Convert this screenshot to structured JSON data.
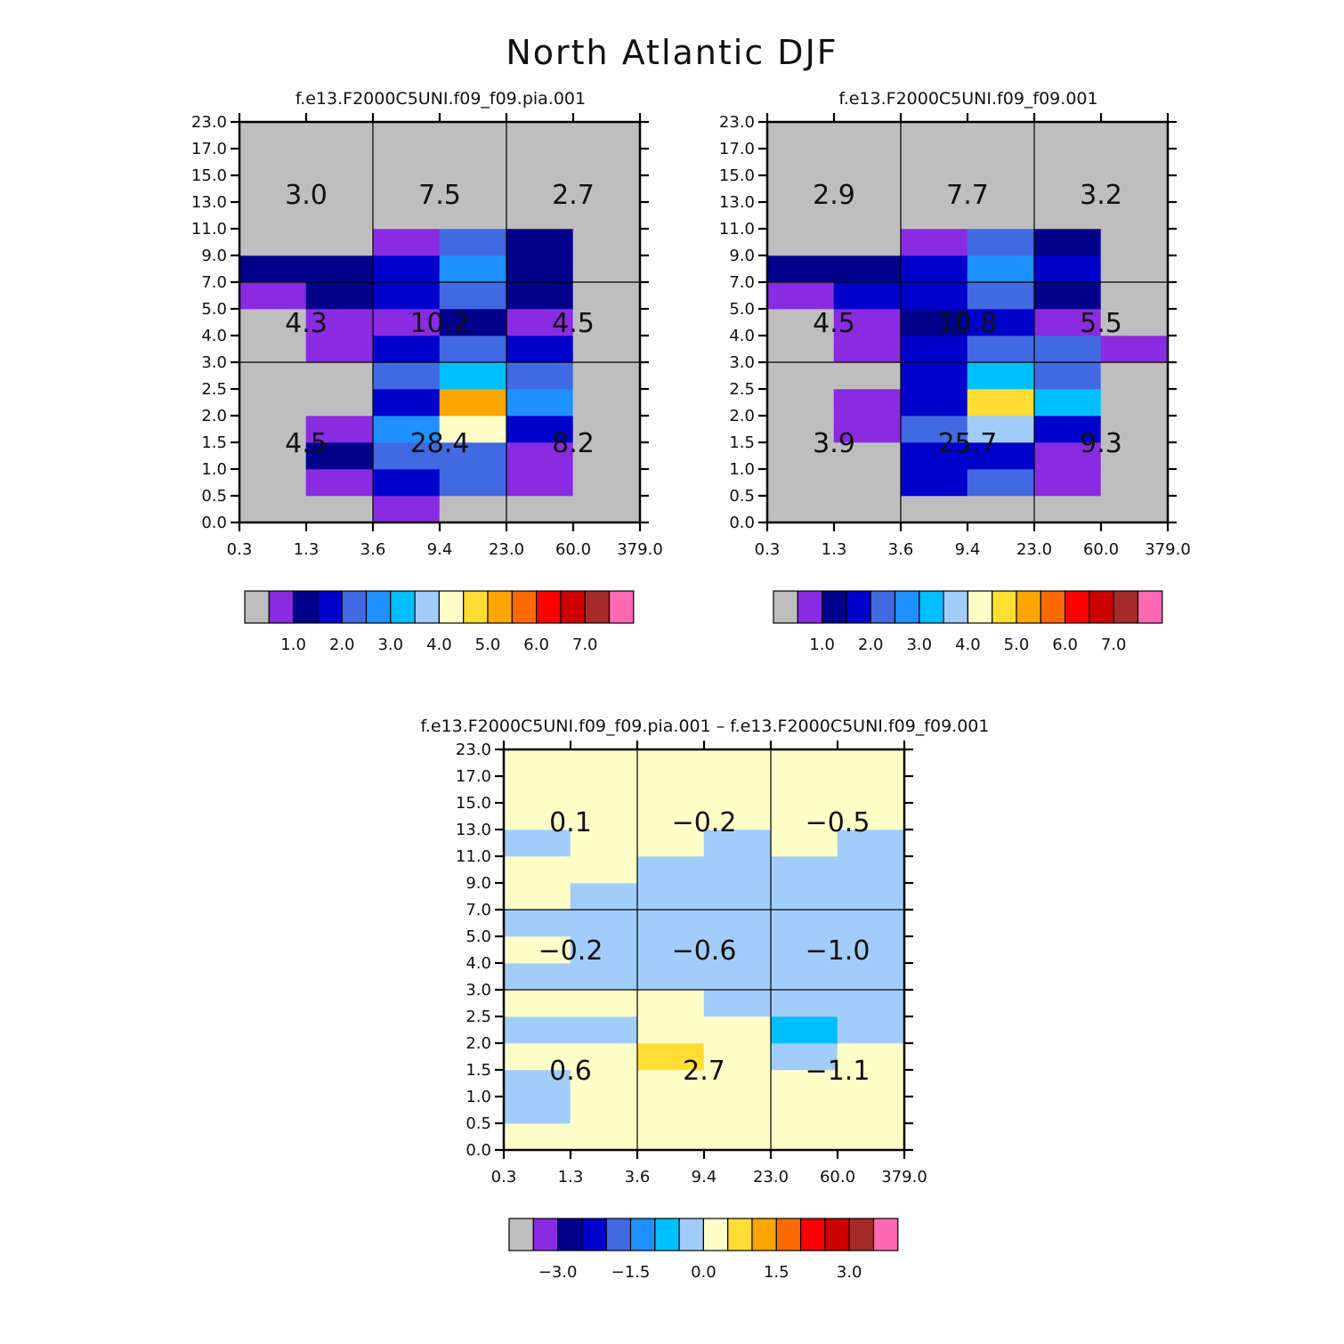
{
  "title": "North Atlantic DJF",
  "x_ticks": [
    "0.3",
    "1.3",
    "3.6",
    "9.4",
    "23.0",
    "60.0",
    "379.0"
  ],
  "y_ticks": [
    "0.0",
    "0.5",
    "1.0",
    "1.5",
    "2.0",
    "2.5",
    "3.0",
    "4.0",
    "5.0",
    "7.0",
    "9.0",
    "11.0",
    "13.0",
    "15.0",
    "17.0",
    "23.0"
  ],
  "colors": {
    "c0": "#bebebe",
    "c1": "#8a2be2",
    "c2": "#00008b",
    "c3": "#0000cd",
    "c4": "#4169e1",
    "c5": "#1e90ff",
    "c6": "#00bfff",
    "c7": "#a2cdfa",
    "c8": "#ffffc8",
    "c9": "#ffdd33",
    "c10": "#ffa500",
    "c11": "#ff6a00",
    "c12": "#ff0000",
    "c13": "#cd0000",
    "c14": "#a52a2a",
    "c15": "#ff69b4"
  },
  "chart_data": [
    {
      "type": "heatmap",
      "title": "f.e13.F2000C5UNI.f09_f09.pia.001",
      "colorbar_labels": [
        "1.0",
        "2.0",
        "3.0",
        "4.0",
        "5.0",
        "6.0",
        "7.0"
      ],
      "cells": [
        [
          0,
          0,
          1,
          0,
          0,
          0
        ],
        [
          0,
          1,
          3,
          4,
          1,
          0
        ],
        [
          0,
          2,
          4,
          4,
          1,
          0
        ],
        [
          0,
          1,
          5,
          8,
          3,
          0
        ],
        [
          0,
          0,
          3,
          10,
          5,
          0
        ],
        [
          0,
          0,
          4,
          6,
          4,
          0
        ],
        [
          0,
          1,
          3,
          4,
          3,
          0
        ],
        [
          0,
          1,
          1,
          2,
          1,
          0
        ],
        [
          1,
          2,
          3,
          4,
          2,
          0
        ],
        [
          2,
          2,
          3,
          5,
          2,
          0
        ],
        [
          0,
          0,
          1,
          4,
          2,
          0
        ],
        [
          0,
          0,
          0,
          0,
          0,
          0
        ],
        [
          0,
          0,
          0,
          0,
          0,
          0
        ],
        [
          0,
          0,
          0,
          0,
          0,
          0
        ],
        [
          0,
          0,
          0,
          0,
          0,
          0
        ]
      ],
      "box_values": [
        [
          "4.5",
          "28.4",
          "8.2"
        ],
        [
          "4.3",
          "10.2",
          "4.5"
        ],
        [
          "3.0",
          "7.5",
          "2.7"
        ]
      ]
    },
    {
      "type": "heatmap",
      "title": "f.e13.F2000C5UNI.f09_f09.001",
      "colorbar_labels": [
        "1.0",
        "2.0",
        "3.0",
        "4.0",
        "5.0",
        "6.0",
        "7.0"
      ],
      "cells": [
        [
          0,
          0,
          0,
          0,
          0,
          0
        ],
        [
          0,
          0,
          3,
          4,
          1,
          0
        ],
        [
          0,
          0,
          3,
          3,
          1,
          0
        ],
        [
          0,
          1,
          4,
          7,
          3,
          0
        ],
        [
          0,
          1,
          3,
          9,
          6,
          0
        ],
        [
          0,
          0,
          3,
          6,
          4,
          0
        ],
        [
          0,
          1,
          3,
          4,
          4,
          1
        ],
        [
          0,
          1,
          2,
          3,
          1,
          0
        ],
        [
          1,
          3,
          3,
          4,
          2,
          0
        ],
        [
          2,
          2,
          3,
          5,
          3,
          0
        ],
        [
          0,
          0,
          1,
          4,
          2,
          0
        ],
        [
          0,
          0,
          0,
          0,
          0,
          0
        ],
        [
          0,
          0,
          0,
          0,
          0,
          0
        ],
        [
          0,
          0,
          0,
          0,
          0,
          0
        ],
        [
          0,
          0,
          0,
          0,
          0,
          0
        ]
      ],
      "box_values": [
        [
          "3.9",
          "25.7",
          "9.3"
        ],
        [
          "4.5",
          "10.8",
          "5.5"
        ],
        [
          "2.9",
          "7.7",
          "3.2"
        ]
      ]
    },
    {
      "type": "heatmap",
      "title": "f.e13.F2000C5UNI.f09_f09.pia.001 – f.e13.F2000C5UNI.f09_f09.001",
      "colorbar_labels": [
        "−3.0",
        "−1.5",
        "0.0",
        "1.5",
        "3.0"
      ],
      "cells": [
        [
          8,
          8,
          8,
          8,
          8,
          8
        ],
        [
          7,
          8,
          8,
          8,
          8,
          8
        ],
        [
          7,
          8,
          8,
          8,
          8,
          8
        ],
        [
          8,
          8,
          9,
          8,
          7,
          8
        ],
        [
          7,
          7,
          8,
          8,
          6,
          7
        ],
        [
          8,
          8,
          8,
          7,
          7,
          7
        ],
        [
          7,
          7,
          7,
          7,
          7,
          7
        ],
        [
          8,
          7,
          7,
          7,
          7,
          7
        ],
        [
          7,
          7,
          7,
          7,
          7,
          7
        ],
        [
          8,
          7,
          7,
          7,
          7,
          7
        ],
        [
          8,
          8,
          7,
          7,
          7,
          7
        ],
        [
          7,
          8,
          8,
          7,
          8,
          7
        ],
        [
          8,
          8,
          8,
          8,
          8,
          8
        ],
        [
          8,
          8,
          8,
          8,
          8,
          8
        ],
        [
          8,
          8,
          8,
          8,
          8,
          8
        ]
      ],
      "box_values": [
        [
          "0.6",
          "2.7",
          "−1.1"
        ],
        [
          "−0.2",
          "−0.6",
          "−1.0"
        ],
        [
          "0.1",
          "−0.2",
          "−0.5"
        ]
      ]
    }
  ]
}
